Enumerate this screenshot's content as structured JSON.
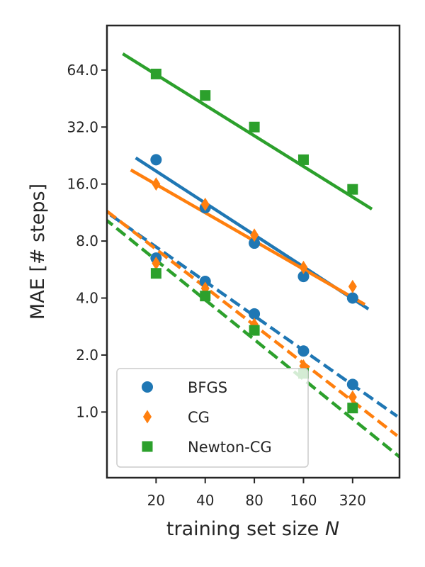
{
  "chart_data": {
    "type": "scatter",
    "title": "",
    "xlabel": "training set size",
    "xlabel_symbol": "N",
    "ylabel": "MAE [# steps]",
    "x_scale": "log2",
    "y_scale": "log2",
    "xlim": [
      10,
      620
    ],
    "ylim": [
      0.45,
      110
    ],
    "x_ticks": [
      20,
      40,
      80,
      160,
      320
    ],
    "x_tick_labels": [
      "20",
      "40",
      "80",
      "160",
      "320"
    ],
    "y_ticks": [
      1,
      2,
      4,
      8,
      16,
      32,
      64
    ],
    "y_tick_labels": [
      "1.0",
      "2.0",
      "4.0",
      "8.0",
      "16.0",
      "32.0",
      "64.0"
    ],
    "grid": false,
    "legend_position": "lower-left",
    "series": [
      {
        "name": "BFGS",
        "color": "#1f77b4",
        "marker": "circle",
        "points": [
          {
            "x": 20,
            "y": 21.5,
            "fit": "solid"
          },
          {
            "x": 40,
            "y": 12.0,
            "fit": "solid"
          },
          {
            "x": 80,
            "y": 7.8,
            "fit": "solid"
          },
          {
            "x": 160,
            "y": 5.2,
            "fit": "solid"
          },
          {
            "x": 320,
            "y": 4.0,
            "fit": "solid"
          },
          {
            "x": 20,
            "y": 6.5,
            "fit": "dashed"
          },
          {
            "x": 40,
            "y": 4.9,
            "fit": "dashed"
          },
          {
            "x": 80,
            "y": 3.3,
            "fit": "dashed"
          },
          {
            "x": 160,
            "y": 2.1,
            "fit": "dashed"
          },
          {
            "x": 320,
            "y": 1.4,
            "fit": "dashed"
          }
        ],
        "fits": [
          {
            "style": "solid",
            "x": [
              15,
              400
            ],
            "y": [
              22,
              3.5
            ]
          },
          {
            "style": "dashed",
            "x": [
              10.5,
              600
            ],
            "y": [
              11,
              0.95
            ]
          }
        ]
      },
      {
        "name": "CG",
        "color": "#ff7f0e",
        "marker": "diamond",
        "points": [
          {
            "x": 20,
            "y": 16.0,
            "fit": "solid"
          },
          {
            "x": 40,
            "y": 12.5,
            "fit": "solid"
          },
          {
            "x": 80,
            "y": 8.6,
            "fit": "solid"
          },
          {
            "x": 160,
            "y": 5.8,
            "fit": "solid"
          },
          {
            "x": 320,
            "y": 4.6,
            "fit": "solid"
          },
          {
            "x": 20,
            "y": 6.1,
            "fit": "dashed"
          },
          {
            "x": 40,
            "y": 4.5,
            "fit": "dashed"
          },
          {
            "x": 80,
            "y": 2.9,
            "fit": "dashed"
          },
          {
            "x": 160,
            "y": 1.75,
            "fit": "dashed"
          },
          {
            "x": 320,
            "y": 1.2,
            "fit": "dashed"
          }
        ],
        "fits": [
          {
            "style": "solid",
            "x": [
              14,
              380
            ],
            "y": [
              19,
              3.7
            ]
          },
          {
            "style": "dashed",
            "x": [
              10,
              600
            ],
            "y": [
              11.5,
              0.75
            ]
          }
        ]
      },
      {
        "name": "Newton-CG",
        "color": "#2ca02c",
        "marker": "square",
        "points": [
          {
            "x": 20,
            "y": 61.0,
            "fit": "solid"
          },
          {
            "x": 40,
            "y": 47.0,
            "fit": "solid"
          },
          {
            "x": 80,
            "y": 32.0,
            "fit": "solid"
          },
          {
            "x": 160,
            "y": 21.5,
            "fit": "solid"
          },
          {
            "x": 320,
            "y": 15.0,
            "fit": "solid"
          },
          {
            "x": 20,
            "y": 5.4,
            "fit": "dashed"
          },
          {
            "x": 40,
            "y": 4.1,
            "fit": "dashed"
          },
          {
            "x": 80,
            "y": 2.7,
            "fit": "dashed"
          },
          {
            "x": 160,
            "y": 1.6,
            "fit": "dashed"
          },
          {
            "x": 320,
            "y": 1.05,
            "fit": "dashed"
          }
        ],
        "fits": [
          {
            "style": "solid",
            "x": [
              12.5,
              420
            ],
            "y": [
              78,
              11.8
            ]
          },
          {
            "style": "dashed",
            "x": [
              8,
              620
            ],
            "y": [
              12,
              0.58
            ]
          }
        ]
      }
    ]
  }
}
